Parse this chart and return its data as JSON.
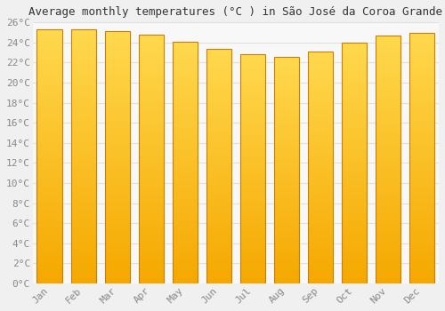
{
  "title": "Average monthly temperatures (°C ) in São José da Coroa Grande",
  "months": [
    "Jan",
    "Feb",
    "Mar",
    "Apr",
    "May",
    "Jun",
    "Jul",
    "Aug",
    "Sep",
    "Oct",
    "Nov",
    "Dec"
  ],
  "temperatures": [
    25.3,
    25.3,
    25.1,
    24.8,
    24.1,
    23.4,
    22.8,
    22.6,
    23.1,
    24.0,
    24.7,
    25.0
  ],
  "bar_color_bottom": "#F5A800",
  "bar_color_top": "#FFD84D",
  "bar_edge_color": "#C98000",
  "background_color": "#f0f0f0",
  "plot_bg_color": "#f8f8f8",
  "grid_color": "#e0e0e0",
  "ytick_step": 2,
  "ymin": 0,
  "ymax": 26,
  "title_fontsize": 9,
  "tick_fontsize": 8,
  "axis_label_color": "#888888",
  "title_color": "#333333",
  "bar_width": 0.75
}
